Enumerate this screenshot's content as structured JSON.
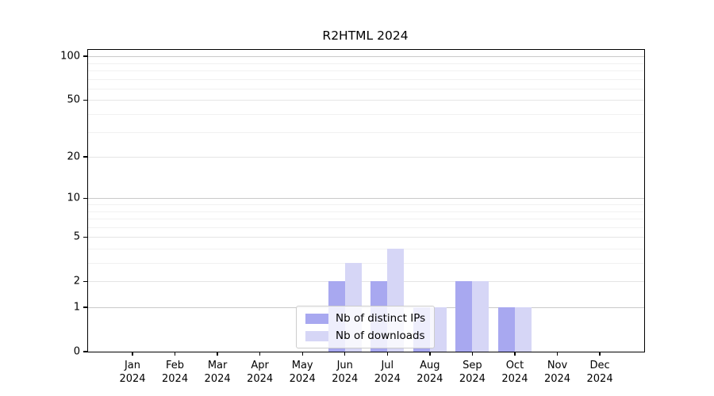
{
  "chart_data": {
    "type": "bar",
    "title": "R2HTML 2024",
    "categories": [
      "Jan 2024",
      "Feb 2024",
      "Mar 2024",
      "Apr 2024",
      "May 2024",
      "Jun 2024",
      "Jul 2024",
      "Aug 2024",
      "Sep 2024",
      "Oct 2024",
      "Nov 2024",
      "Dec 2024"
    ],
    "series": [
      {
        "name": "Nb of distinct IPs",
        "color": "#a8a8f0",
        "values": [
          0,
          0,
          0,
          0,
          0,
          2,
          2,
          1,
          2,
          1,
          0,
          0
        ]
      },
      {
        "name": "Nb of downloads",
        "color": "#d6d6f6",
        "values": [
          0,
          0,
          0,
          0,
          0,
          3,
          4,
          1,
          2,
          1,
          0,
          0
        ]
      }
    ],
    "y_axis": {
      "scale": "log10(1+x)",
      "tick_values": [
        0,
        1,
        2,
        5,
        10,
        20,
        50,
        100
      ],
      "decade_gridlines": [
        1,
        10,
        100
      ],
      "minor_gridline_values": [
        3,
        4,
        6,
        7,
        8,
        9,
        30,
        40,
        60,
        70,
        80,
        90
      ],
      "ylim": [
        0,
        111
      ]
    },
    "grid": true,
    "legend": {
      "position": "lower center"
    },
    "colors": {
      "decade_gridline": "#c9c9c9",
      "major_gridline": "#e5e5e5",
      "minor_gridline": "#f1f1f1",
      "axis": "#000000",
      "background": "#ffffff"
    }
  }
}
